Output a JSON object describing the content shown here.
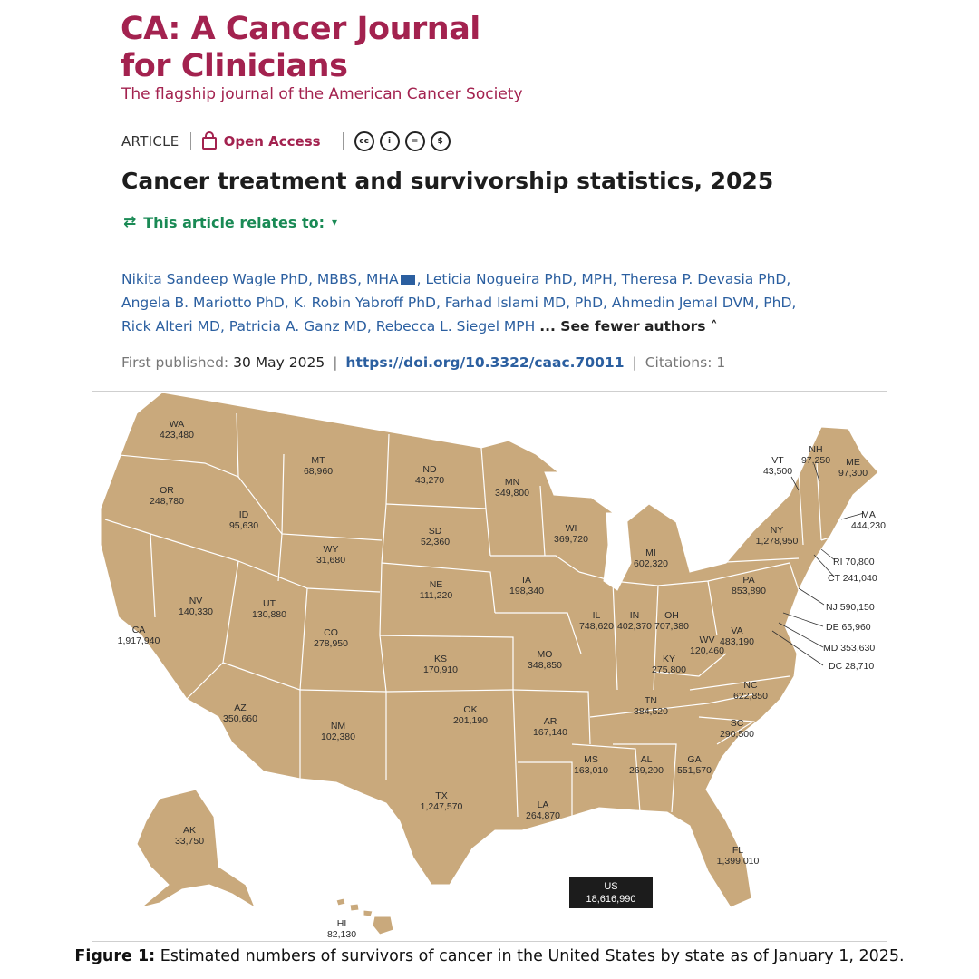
{
  "journal": {
    "title_line1": "CA: A Cancer Journal",
    "title_line2": "for Clinicians",
    "tagline": "The flagship journal of the American Cancer Society"
  },
  "meta": {
    "article_type": "ARTICLE",
    "open_access_label": "Open Access",
    "license_icons": [
      "cc-icon",
      "by-icon",
      "nd-icon",
      "nc-icon"
    ]
  },
  "article": {
    "title": "Cancer treatment and survivorship statistics, 2025",
    "relates_label": "This article relates to:",
    "authors_line1": "Nikita Sandeep Wagle PhD, MBBS, MHA",
    "authors_line1b": ", Leticia Nogueira PhD, MPH, Theresa P. Devasia PhD,",
    "authors_line2": "Angela B. Mariotto PhD, K. Robin Yabroff PhD, Farhad Islami MD, PhD, Ahmedin Jemal DVM, PhD,",
    "authors_line3": "Rick Alteri MD, Patricia A. Ganz MD, Rebecca L. Siegel MPH",
    "see_fewer": "... See fewer authors",
    "first_published_label": "First published:",
    "first_published_date": "30 May 2025",
    "doi": "https://doi.org/10.3322/caac.70011",
    "citations": "Citations: 1"
  },
  "map": {
    "fill_color": "#c9a97c",
    "border_color": "#ffffff",
    "us_label": "US",
    "us_total": "18,616,990",
    "states": [
      {
        "abbr": "WA",
        "value": "423,480"
      },
      {
        "abbr": "OR",
        "value": "248,780"
      },
      {
        "abbr": "CA",
        "value": "1,917,940"
      },
      {
        "abbr": "NV",
        "value": "140,330"
      },
      {
        "abbr": "ID",
        "value": "95,630"
      },
      {
        "abbr": "MT",
        "value": "68,960"
      },
      {
        "abbr": "WY",
        "value": "31,680"
      },
      {
        "abbr": "UT",
        "value": "130,880"
      },
      {
        "abbr": "AZ",
        "value": "350,660"
      },
      {
        "abbr": "CO",
        "value": "278,950"
      },
      {
        "abbr": "NM",
        "value": "102,380"
      },
      {
        "abbr": "ND",
        "value": "43,270"
      },
      {
        "abbr": "SD",
        "value": "52,360"
      },
      {
        "abbr": "NE",
        "value": "111,220"
      },
      {
        "abbr": "KS",
        "value": "170,910"
      },
      {
        "abbr": "OK",
        "value": "201,190"
      },
      {
        "abbr": "TX",
        "value": "1,247,570"
      },
      {
        "abbr": "MN",
        "value": "349,800"
      },
      {
        "abbr": "IA",
        "value": "198,340"
      },
      {
        "abbr": "MO",
        "value": "348,850"
      },
      {
        "abbr": "AR",
        "value": "167,140"
      },
      {
        "abbr": "LA",
        "value": "264,870"
      },
      {
        "abbr": "WI",
        "value": "369,720"
      },
      {
        "abbr": "IL",
        "value": "748,620"
      },
      {
        "abbr": "MI",
        "value": "602,320"
      },
      {
        "abbr": "IN",
        "value": "402,370"
      },
      {
        "abbr": "OH",
        "value": "707,380"
      },
      {
        "abbr": "KY",
        "value": "275,800"
      },
      {
        "abbr": "TN",
        "value": "384,520"
      },
      {
        "abbr": "MS",
        "value": "163,010"
      },
      {
        "abbr": "AL",
        "value": "269,200"
      },
      {
        "abbr": "GA",
        "value": "551,570"
      },
      {
        "abbr": "FL",
        "value": "1,399,010"
      },
      {
        "abbr": "SC",
        "value": "290,500"
      },
      {
        "abbr": "NC",
        "value": "622,850"
      },
      {
        "abbr": "VA",
        "value": "483,190"
      },
      {
        "abbr": "WV",
        "value": "120,460"
      },
      {
        "abbr": "PA",
        "value": "853,890"
      },
      {
        "abbr": "NY",
        "value": "1,278,950"
      },
      {
        "abbr": "VT",
        "value": "43,500"
      },
      {
        "abbr": "NH",
        "value": "97,250"
      },
      {
        "abbr": "ME",
        "value": "97,300"
      },
      {
        "abbr": "MA",
        "value": "444,230"
      },
      {
        "abbr": "AK",
        "value": "33,750"
      },
      {
        "abbr": "HI",
        "value": "82,130"
      }
    ],
    "callouts": [
      {
        "abbr": "RI",
        "value": "70,800"
      },
      {
        "abbr": "CT",
        "value": "241,040"
      },
      {
        "abbr": "NJ",
        "value": "590,150"
      },
      {
        "abbr": "DE",
        "value": "65,960"
      },
      {
        "abbr": "MD",
        "value": "353,630"
      },
      {
        "abbr": "DC",
        "value": "28,710"
      }
    ]
  },
  "caption": {
    "label": "Figure 1:",
    "text": "Estimated numbers of survivors of cancer in the United States by state as of January 1, 2025."
  }
}
